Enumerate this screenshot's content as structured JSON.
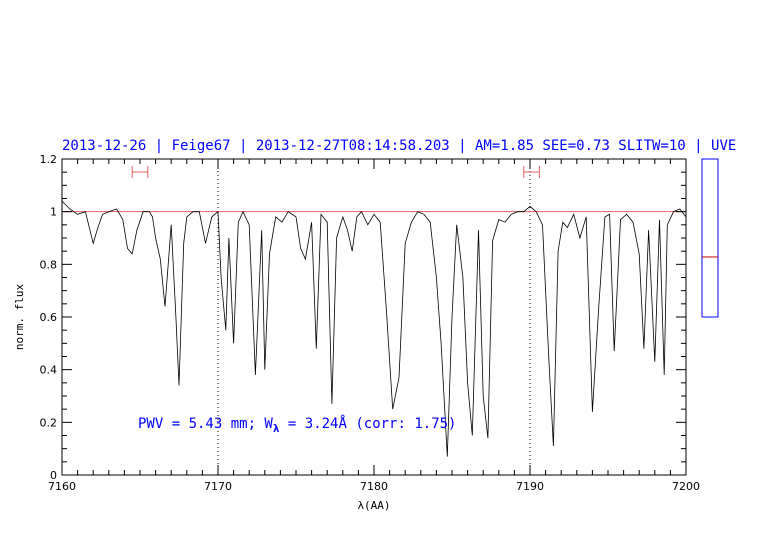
{
  "chart_data": {
    "type": "line",
    "title": "2013-12-26 | Feige67 | 2013-12-27T08:14:58.203 | AM=1.85 SEE=0.73 SLITW=10 | UVE",
    "xlabel": "λ(AA)",
    "ylabel": "norm. flux",
    "xlim": [
      7160,
      7200
    ],
    "ylim": [
      0,
      1.2
    ],
    "x_ticks": [
      "7160",
      "7170",
      "7180",
      "7190",
      "7200"
    ],
    "y_ticks": [
      "0",
      "0.2",
      "0.4",
      "0.6",
      "0.8",
      "1",
      "1.2"
    ],
    "continuum_level": 1.0,
    "reference_lines_x": [
      7170,
      7190
    ],
    "range_markers": [
      [
        7164.5,
        7165.5
      ],
      [
        7189.6,
        7190.6
      ]
    ],
    "annotation": {
      "prefix": "PWV = 5.43 mm; W",
      "subscript": "λ",
      "suffix": " = 3.24Å (corr: 1.75)"
    },
    "side_bar": {
      "level": 0.38
    },
    "colors": {
      "spectrum": "#000000",
      "continuum": "#e06060",
      "text": "#0000ff",
      "markers": "#e06060"
    },
    "series": [
      {
        "x": [
          7160.0,
          7160.5,
          7161.0,
          7161.5,
          7162.0,
          7162.3,
          7162.6,
          7163.0,
          7163.5,
          7163.9,
          7164.2,
          7164.5,
          7164.8,
          7165.2,
          7165.6,
          7165.8,
          7166.0,
          7166.3,
          7166.6,
          7167.0,
          7167.3,
          7167.5,
          7167.8,
          7168.0,
          7168.4,
          7168.8,
          7169.2,
          7169.6,
          7170.0,
          7170.2,
          7170.5,
          7170.7,
          7171.0,
          7171.3,
          7171.6,
          7172.0,
          7172.4,
          7172.8,
          7173.0,
          7173.3,
          7173.7,
          7174.1,
          7174.5,
          7175.0,
          7175.3,
          7175.6,
          7176.0,
          7176.3,
          7176.6,
          7177.0,
          7177.3,
          7177.6,
          7178.0,
          7178.3,
          7178.6,
          7178.9,
          7179.2,
          7179.6,
          7180.0,
          7180.4,
          7180.8,
          7181.2,
          7181.6,
          7182.0,
          7182.4,
          7182.8,
          7183.2,
          7183.6,
          7184.0,
          7184.3,
          7184.7,
          7185.0,
          7185.3,
          7185.7,
          7186.0,
          7186.3,
          7186.7,
          7187.0,
          7187.3,
          7187.6,
          7188.0,
          7188.4,
          7188.8,
          7189.2,
          7189.6,
          7190.0,
          7190.4,
          7190.8,
          7191.2,
          7191.5,
          7191.8,
          7192.1,
          7192.4,
          7192.8,
          7193.2,
          7193.6,
          7194.0,
          7194.4,
          7194.8,
          7195.1,
          7195.4,
          7195.8,
          7196.2,
          7196.6,
          7197.0,
          7197.3,
          7197.6,
          7198.0,
          7198.3,
          7198.6,
          7198.8,
          7199.2,
          7199.6,
          7200.0
        ],
        "y": [
          1.04,
          1.01,
          0.99,
          1.0,
          0.88,
          0.94,
          0.99,
          1.0,
          1.01,
          0.97,
          0.86,
          0.84,
          0.93,
          1.0,
          1.0,
          0.98,
          0.9,
          0.82,
          0.64,
          0.95,
          0.6,
          0.34,
          0.88,
          0.98,
          1.0,
          1.0,
          0.88,
          0.98,
          1.0,
          0.75,
          0.55,
          0.9,
          0.5,
          0.96,
          1.0,
          0.95,
          0.38,
          0.93,
          0.4,
          0.84,
          0.98,
          0.96,
          1.0,
          0.98,
          0.86,
          0.82,
          0.96,
          0.48,
          0.99,
          0.96,
          0.27,
          0.9,
          0.98,
          0.93,
          0.85,
          0.98,
          1.0,
          0.95,
          0.99,
          0.96,
          0.62,
          0.25,
          0.37,
          0.88,
          0.96,
          1.0,
          0.99,
          0.96,
          0.75,
          0.5,
          0.07,
          0.6,
          0.95,
          0.75,
          0.35,
          0.15,
          0.93,
          0.3,
          0.14,
          0.89,
          0.97,
          0.96,
          0.99,
          1.0,
          1.0,
          1.02,
          1.0,
          0.95,
          0.45,
          0.11,
          0.85,
          0.96,
          0.94,
          0.99,
          0.9,
          0.98,
          0.24,
          0.63,
          0.98,
          0.99,
          0.47,
          0.97,
          0.99,
          0.96,
          0.84,
          0.48,
          0.93,
          0.43,
          0.97,
          0.38,
          0.95,
          1.0,
          1.01,
          0.98
        ]
      }
    ]
  }
}
